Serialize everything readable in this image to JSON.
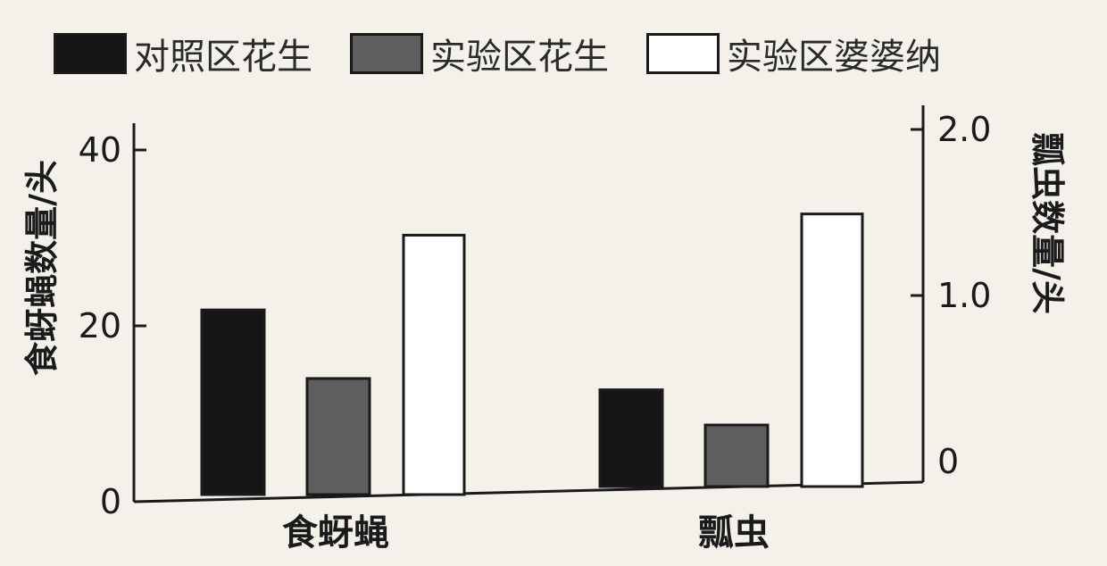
{
  "chart_data": {
    "type": "bar",
    "categories": [
      "食蚜蝇",
      "瓢虫"
    ],
    "series": [
      {
        "name": "对照区花生",
        "color": "#151515",
        "values": [
          21,
          0.55
        ]
      },
      {
        "name": "实验区花生",
        "color": "#5e5e5e",
        "values": [
          13.2,
          0.35
        ]
      },
      {
        "name": "实验区婆婆纳",
        "color": "#ffffff",
        "values": [
          29.5,
          1.55
        ]
      }
    ],
    "left_axis": {
      "label": "食蚜蝇数量/头",
      "ylim": [
        0,
        40
      ],
      "ticks": [
        "0",
        "20",
        "40"
      ],
      "applies_to": "食蚜蝇"
    },
    "right_axis": {
      "label": "瓢虫数量/头",
      "ylim": [
        0,
        2.0
      ],
      "ticks": [
        "0",
        "1.0",
        "2.0"
      ],
      "applies_to": "瓢虫"
    },
    "legend_position": "top"
  }
}
